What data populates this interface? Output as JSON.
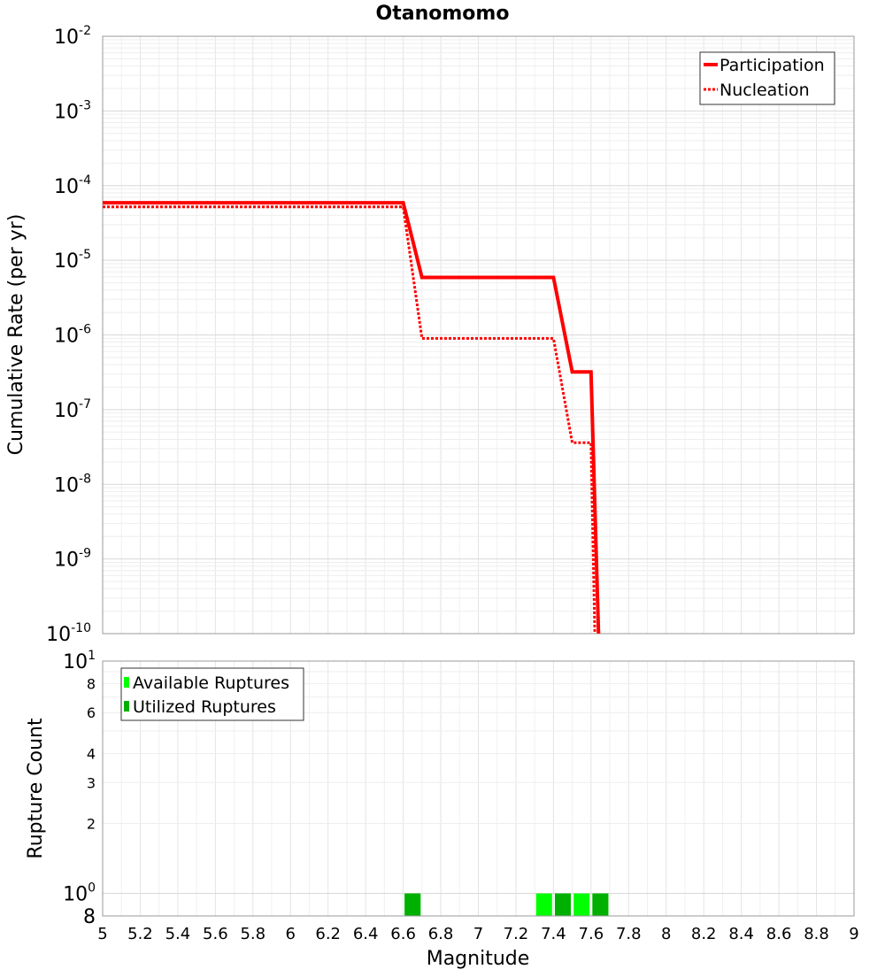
{
  "chart_data": [
    {
      "type": "line",
      "title": "Otanomomo",
      "ylabel": "Cumulative Rate (per yr)",
      "xlabel": "",
      "xlim": [
        5,
        9
      ],
      "ylim": [
        1e-10,
        0.01
      ],
      "yscale": "log",
      "grid": true,
      "legend_position": "top-right",
      "y_ticks": [
        {
          "base": "10",
          "exp": "-2"
        },
        {
          "base": "10",
          "exp": "-3"
        },
        {
          "base": "10",
          "exp": "-4"
        },
        {
          "base": "10",
          "exp": "-5"
        },
        {
          "base": "10",
          "exp": "-6"
        },
        {
          "base": "10",
          "exp": "-7"
        },
        {
          "base": "10",
          "exp": "-8"
        },
        {
          "base": "10",
          "exp": "-9"
        },
        {
          "base": "10",
          "exp": "-10"
        }
      ],
      "series": [
        {
          "name": "Participation",
          "color": "#ff0000",
          "dash": "solid",
          "x": [
            5.0,
            6.6,
            6.7,
            7.4,
            7.5,
            7.6,
            7.64
          ],
          "y": [
            5.9e-05,
            5.9e-05,
            5.9e-06,
            5.9e-06,
            3.2e-07,
            3.2e-07,
            1e-10
          ]
        },
        {
          "name": "Nucleation",
          "color": "#ff0000",
          "dash": "dotted",
          "x": [
            5.0,
            6.6,
            6.7,
            7.4,
            7.5,
            7.6,
            7.62
          ],
          "y": [
            5.2e-05,
            5.2e-05,
            9e-07,
            9e-07,
            3.6e-08,
            3.6e-08,
            1e-10
          ]
        }
      ]
    },
    {
      "type": "bar",
      "ylabel": "Rupture Count",
      "xlabel": "Magnitude",
      "xlim": [
        5,
        9
      ],
      "ylim": [
        0.8,
        10
      ],
      "yscale": "log",
      "grid": true,
      "legend_position": "top-left",
      "x_ticks": [
        "5",
        "5.2",
        "5.4",
        "5.6",
        "5.8",
        "6",
        "6.2",
        "6.4",
        "6.6",
        "6.8",
        "7",
        "7.2",
        "7.4",
        "7.6",
        "7.8",
        "8",
        "8.2",
        "8.4",
        "8.6",
        "8.8",
        "9"
      ],
      "y_tick_labels": [
        {
          "value": 10,
          "base": "10",
          "exp": "1"
        },
        {
          "value": 8,
          "base": "8",
          "exp": ""
        },
        {
          "value": 6,
          "base": "6",
          "exp": ""
        },
        {
          "value": 4,
          "base": "4",
          "exp": ""
        },
        {
          "value": 3,
          "base": "3",
          "exp": ""
        },
        {
          "value": 2,
          "base": "2",
          "exp": ""
        },
        {
          "value": 1,
          "base": "10",
          "exp": "0"
        },
        {
          "value": 0.8,
          "base": "8",
          "exp": ""
        }
      ],
      "series": [
        {
          "name": "Available Ruptures",
          "color": "#00ff00",
          "x": [
            6.65,
            7.35,
            7.45,
            7.55,
            7.65
          ],
          "values": [
            1,
            1,
            1,
            1,
            1
          ]
        },
        {
          "name": "Utilized Ruptures",
          "color": "#00b000",
          "x": [
            6.65,
            7.45,
            7.65
          ],
          "values": [
            1,
            1,
            1
          ]
        }
      ]
    }
  ]
}
